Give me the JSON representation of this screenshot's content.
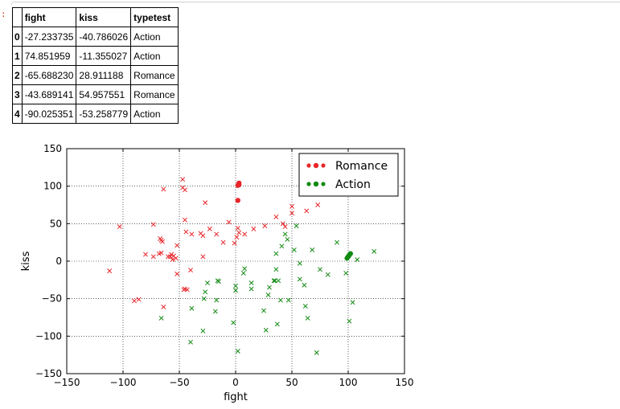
{
  "notebook": {
    "prompt": ":"
  },
  "dataframe": {
    "columns": [
      "",
      "fight",
      "kiss",
      "typetest"
    ],
    "rows": [
      {
        "index": "0",
        "fight": "-27.233735",
        "kiss": "-40.786026",
        "typetest": "Action"
      },
      {
        "index": "1",
        "fight": "74.851959",
        "kiss": "-11.355027",
        "typetest": "Action"
      },
      {
        "index": "2",
        "fight": "-65.688230",
        "kiss": "28.911188",
        "typetest": "Romance"
      },
      {
        "index": "3",
        "fight": "-43.689141",
        "kiss": "54.957551",
        "typetest": "Romance"
      },
      {
        "index": "4",
        "fight": "-90.025351",
        "kiss": "-53.258779",
        "typetest": "Action"
      }
    ]
  },
  "chart_data": {
    "type": "scatter",
    "xlabel": "fight",
    "ylabel": "kiss",
    "xlim": [
      -150,
      150
    ],
    "ylim": [
      -150,
      150
    ],
    "xticks": [
      -150,
      -100,
      -50,
      0,
      50,
      100,
      150
    ],
    "yticks": [
      -150,
      -100,
      -50,
      0,
      50,
      100,
      150
    ],
    "xtick_labels": [
      "−150",
      "−100",
      "−50",
      "0",
      "50",
      "100",
      "150"
    ],
    "ytick_labels": [
      "−150",
      "−100",
      "−50",
      "0",
      "50",
      "100",
      "150"
    ],
    "grid": true,
    "grid_style": "dotted",
    "legend_position": "top-right",
    "series": [
      {
        "name": "Romance",
        "color": "#e8262a",
        "marker": "x",
        "points": [
          [
            -47,
            109
          ],
          [
            -64,
            96
          ],
          [
            -47,
            98
          ],
          [
            -45,
            95
          ],
          [
            -27,
            78
          ],
          [
            -103,
            46
          ],
          [
            -73,
            49
          ],
          [
            -45,
            55
          ],
          [
            -67,
            30
          ],
          [
            -65,
            26
          ],
          [
            -66,
            28
          ],
          [
            -57,
            9
          ],
          [
            -55,
            7
          ],
          [
            -80,
            9
          ],
          [
            -68,
            10
          ],
          [
            -66,
            11
          ],
          [
            -73,
            6
          ],
          [
            -60,
            6
          ],
          [
            -58,
            6
          ],
          [
            -53,
            4
          ],
          [
            -56,
            2
          ],
          [
            -52,
            21
          ],
          [
            -44,
            39
          ],
          [
            -39,
            36
          ],
          [
            -31,
            37
          ],
          [
            -29,
            34
          ],
          [
            -23,
            43
          ],
          [
            -17,
            36
          ],
          [
            -11,
            25
          ],
          [
            -6,
            52
          ],
          [
            -1,
            24
          ],
          [
            2,
            44
          ],
          [
            3,
            38
          ],
          [
            8,
            36
          ],
          [
            16,
            43
          ],
          [
            26,
            47
          ],
          [
            36,
            59
          ],
          [
            42,
            50
          ],
          [
            44,
            46
          ],
          [
            50,
            64
          ],
          [
            50,
            73
          ],
          [
            63,
            67
          ],
          [
            73,
            75
          ],
          [
            -52,
            -17
          ],
          [
            -29,
            6
          ],
          [
            -46,
            -38
          ],
          [
            -45,
            -37
          ],
          [
            -43,
            -38
          ],
          [
            -40,
            -12
          ],
          [
            -64,
            -61
          ],
          [
            -112,
            -13
          ],
          [
            -90,
            -53
          ],
          [
            -86,
            -51
          ],
          [
            1,
            32
          ]
        ]
      },
      {
        "name": "Action",
        "color": "#138a13",
        "marker": "x",
        "points": [
          [
            -66,
            -76
          ],
          [
            -40,
            -108
          ],
          [
            -39,
            -63
          ],
          [
            -29,
            -93
          ],
          [
            -28,
            -50
          ],
          [
            -27,
            -41
          ],
          [
            -25,
            -29
          ],
          [
            -18,
            -67
          ],
          [
            -17,
            -52
          ],
          [
            -16,
            -26
          ],
          [
            -15,
            -27
          ],
          [
            -2,
            -82
          ],
          [
            0,
            -33
          ],
          [
            0,
            -39
          ],
          [
            2,
            -120
          ],
          [
            7,
            -16
          ],
          [
            8,
            -10
          ],
          [
            14,
            -29
          ],
          [
            14,
            -37
          ],
          [
            25,
            -66
          ],
          [
            27,
            -92
          ],
          [
            29,
            -45
          ],
          [
            30,
            -35
          ],
          [
            34,
            -26
          ],
          [
            35,
            -26
          ],
          [
            36,
            -11
          ],
          [
            36,
            10
          ],
          [
            37,
            -84
          ],
          [
            38,
            -26
          ],
          [
            40,
            -52
          ],
          [
            41,
            20
          ],
          [
            44,
            36
          ],
          [
            46,
            29
          ],
          [
            47,
            -52
          ],
          [
            52,
            15
          ],
          [
            54,
            47
          ],
          [
            57,
            -3
          ],
          [
            57,
            -24
          ],
          [
            61,
            -32
          ],
          [
            62,
            -60
          ],
          [
            64,
            -76
          ],
          [
            68,
            15
          ],
          [
            72,
            -122
          ],
          [
            75,
            -11
          ],
          [
            82,
            -18
          ],
          [
            90,
            25
          ],
          [
            98,
            -16
          ],
          [
            101,
            -80
          ],
          [
            104,
            -55
          ],
          [
            108,
            2
          ],
          [
            123,
            13
          ]
        ]
      }
    ],
    "highlighted": [
      {
        "name": "Romance",
        "color": "#e8262a",
        "marker": "o",
        "points": [
          [
            2,
            101
          ],
          [
            3,
            102
          ],
          [
            3,
            104
          ],
          [
            2,
            81
          ]
        ]
      },
      {
        "name": "Action",
        "color": "#138a13",
        "marker": "o",
        "points": [
          [
            99,
            4
          ],
          [
            100,
            6
          ],
          [
            101,
            8
          ],
          [
            102,
            10
          ]
        ]
      }
    ]
  }
}
